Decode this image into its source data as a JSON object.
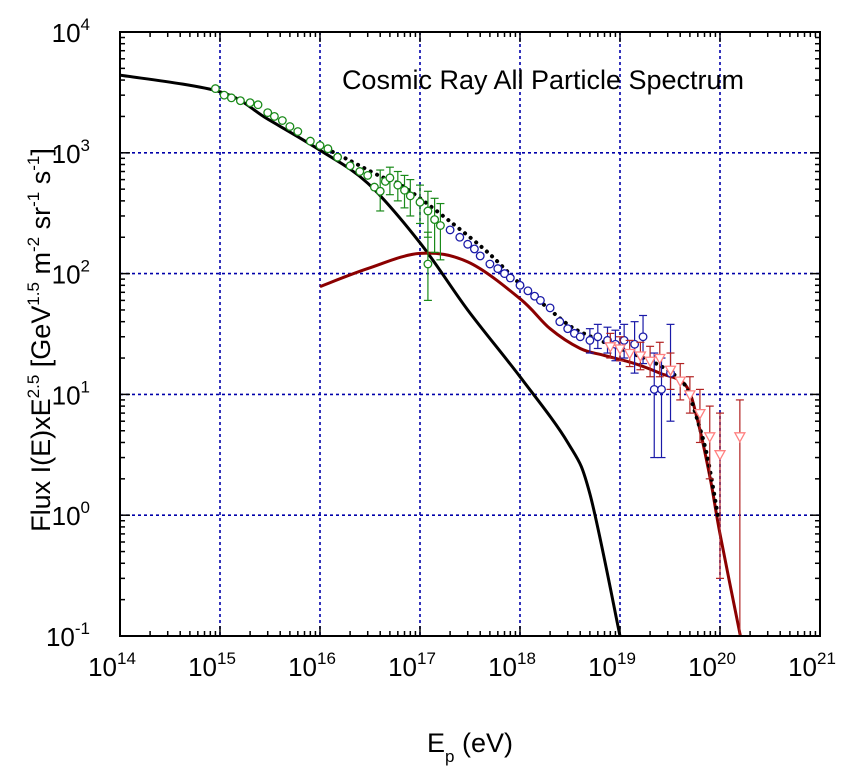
{
  "chart_data": {
    "type": "scatter",
    "title": "Cosmic Ray All Particle Spectrum",
    "xlabel": {
      "main": "E",
      "sub": "p",
      "rest": " (eV)"
    },
    "ylabel": {
      "p1": "Flux I(E)xE",
      "s1": "2.5",
      "p2": " [GeV",
      "s2": "1.5",
      "p3": " m",
      "s3": "-2",
      "p4": " sr",
      "s4": "-1",
      "p5": "  s",
      "s5": "-1",
      "p6": "]"
    },
    "x_scale": "log",
    "y_scale": "log",
    "xlim": [
      100000000000000.0,
      1e+21
    ],
    "ylim": [
      0.1,
      10000
    ],
    "grid": true,
    "x_ticks": [
      {
        "base": "10",
        "exp": "14"
      },
      {
        "base": "10",
        "exp": "15"
      },
      {
        "base": "10",
        "exp": "16"
      },
      {
        "base": "10",
        "exp": "17"
      },
      {
        "base": "10",
        "exp": "18"
      },
      {
        "base": "10",
        "exp": "19"
      },
      {
        "base": "10",
        "exp": "20"
      },
      {
        "base": "10",
        "exp": "21"
      }
    ],
    "y_ticks": [
      {
        "base": "10",
        "exp": "-1"
      },
      {
        "base": "10",
        "exp": "0"
      },
      {
        "base": "10",
        "exp": "1"
      },
      {
        "base": "10",
        "exp": "2"
      },
      {
        "base": "10",
        "exp": "3"
      },
      {
        "base": "10",
        "exp": "4"
      }
    ],
    "colors": {
      "grid": "#0000aa",
      "black_model": "#000000",
      "red_model": "#8b0000",
      "green_data": "#1a8a1a",
      "blue_data": "#1a1aa8",
      "pink_data": "#ff8080",
      "pink_errors": "#b22222"
    },
    "series": [
      {
        "kind": "line",
        "color": "#000000",
        "width": 3,
        "points": [
          [
            100000000000000.0,
            4400
          ],
          [
            1000000000000000.0,
            3200
          ],
          [
            3000000000000000.0,
            1900
          ],
          [
            1e+16,
            1050
          ],
          [
            3e+16,
            560
          ],
          [
            1e+17,
            180
          ],
          [
            3e+17,
            50
          ],
          [
            1e+18,
            14
          ],
          [
            3e+18,
            4
          ],
          [
            5e+18,
            1.5
          ],
          [
            1e+19,
            0.1
          ]
        ]
      },
      {
        "kind": "line",
        "color": "#8b0000",
        "width": 3,
        "points": [
          [
            1e+16,
            78
          ],
          [
            3e+16,
            110
          ],
          [
            1e+17,
            147
          ],
          [
            3e+17,
            125
          ],
          [
            1e+18,
            62
          ],
          [
            2e+18,
            35
          ],
          [
            4e+18,
            24
          ],
          [
            7e+18,
            21
          ],
          [
            1.4e+19,
            18
          ],
          [
            2.5e+19,
            15
          ],
          [
            4.5e+19,
            12
          ],
          [
            6e+19,
            6
          ],
          [
            8e+19,
            2
          ],
          [
            1e+20,
            0.7
          ],
          [
            1.6e+20,
            0.1
          ]
        ]
      },
      {
        "kind": "dotted",
        "color": "#000000",
        "width": 3,
        "points": [
          [
            1e+16,
            1150
          ],
          [
            2e+16,
            860
          ],
          [
            4e+16,
            640
          ],
          [
            6e+16,
            560
          ],
          [
            1e+17,
            420
          ],
          [
            2e+17,
            270
          ],
          [
            4e+17,
            170
          ],
          [
            6e+17,
            125
          ],
          [
            1e+18,
            82
          ],
          [
            2e+18,
            50
          ],
          [
            3e+18,
            38
          ],
          [
            4e+18,
            33
          ],
          [
            7e+18,
            27
          ],
          [
            1.3e+19,
            22
          ],
          [
            2.3e+19,
            18
          ],
          [
            3.7e+19,
            14
          ],
          [
            4.7e+19,
            11
          ],
          [
            6e+19,
            6
          ],
          [
            7.5e+19,
            3
          ],
          [
            9.5e+19,
            1
          ]
        ]
      },
      {
        "kind": "points",
        "marker": "circle",
        "color": "#1a8a1a",
        "points": [
          {
            "x": 900000000000000.0,
            "y": 3400
          },
          {
            "x": 1100000000000000.0,
            "y": 3000
          },
          {
            "x": 1300000000000000.0,
            "y": 2850
          },
          {
            "x": 1600000000000000.0,
            "y": 2700
          },
          {
            "x": 2000000000000000.0,
            "y": 2600
          },
          {
            "x": 2400000000000000.0,
            "y": 2500
          },
          {
            "x": 3000000000000000.0,
            "y": 2150
          },
          {
            "x": 3500000000000000.0,
            "y": 2000
          },
          {
            "x": 4200000000000000.0,
            "y": 1850
          },
          {
            "x": 5000000000000000.0,
            "y": 1650
          },
          {
            "x": 6000000000000000.0,
            "y": 1500
          },
          {
            "x": 8000000000000000.0,
            "y": 1250
          },
          {
            "x": 1e+16,
            "y": 1150
          },
          {
            "x": 1.2e+16,
            "y": 1080
          },
          {
            "x": 1.5e+16,
            "y": 920
          },
          {
            "x": 2e+16,
            "y": 780
          },
          {
            "x": 2.5e+16,
            "y": 700
          },
          {
            "x": 3e+16,
            "y": 650
          },
          {
            "x": 3.5e+16,
            "y": 520
          },
          {
            "x": 4e+16,
            "y": 480,
            "lo": 330,
            "hi": 720
          },
          {
            "x": 4.5e+16,
            "y": 580
          },
          {
            "x": 5e+16,
            "y": 620,
            "lo": 450,
            "hi": 760
          },
          {
            "x": 6e+16,
            "y": 540,
            "lo": 400,
            "hi": 700
          },
          {
            "x": 7e+16,
            "y": 490,
            "lo": 350,
            "hi": 650
          },
          {
            "x": 8e+16,
            "y": 440,
            "lo": 300,
            "hi": 600
          },
          {
            "x": 1e+17,
            "y": 390,
            "lo": 260,
            "hi": 540
          },
          {
            "x": 1.2e+17,
            "y": 330,
            "lo": 200,
            "hi": 480
          },
          {
            "x": 1.4e+17,
            "y": 280,
            "lo": 150,
            "hi": 420
          },
          {
            "x": 1.6e+17,
            "y": 250,
            "lo": 130,
            "hi": 380
          },
          {
            "x": 1.2e+17,
            "y": 120,
            "lo": 60,
            "hi": 220
          }
        ]
      },
      {
        "kind": "points",
        "marker": "circle",
        "color": "#1a1aa8",
        "points": [
          {
            "x": 2e+17,
            "y": 230
          },
          {
            "x": 2.5e+17,
            "y": 200
          },
          {
            "x": 3e+17,
            "y": 175
          },
          {
            "x": 3.5e+17,
            "y": 160
          },
          {
            "x": 4e+17,
            "y": 140
          },
          {
            "x": 5e+17,
            "y": 120
          },
          {
            "x": 6e+17,
            "y": 110
          },
          {
            "x": 7e+17,
            "y": 100
          },
          {
            "x": 8e+17,
            "y": 92
          },
          {
            "x": 1e+18,
            "y": 80
          },
          {
            "x": 1.2e+18,
            "y": 72
          },
          {
            "x": 1.4e+18,
            "y": 65
          },
          {
            "x": 1.6e+18,
            "y": 60
          },
          {
            "x": 2e+18,
            "y": 52
          },
          {
            "x": 2.5e+18,
            "y": 40
          },
          {
            "x": 3e+18,
            "y": 35
          },
          {
            "x": 3.5e+18,
            "y": 32
          },
          {
            "x": 4e+18,
            "y": 30
          },
          {
            "x": 5e+18,
            "y": 28,
            "lo": 22,
            "hi": 35
          },
          {
            "x": 6e+18,
            "y": 30,
            "lo": 24,
            "hi": 38
          },
          {
            "x": 7.5e+18,
            "y": 28,
            "lo": 22,
            "hi": 36
          },
          {
            "x": 9e+18,
            "y": 26,
            "lo": 19,
            "hi": 34
          },
          {
            "x": 1.1e+19,
            "y": 28,
            "lo": 20,
            "hi": 38
          },
          {
            "x": 1.4e+19,
            "y": 26,
            "lo": 15,
            "hi": 40
          },
          {
            "x": 1.7e+19,
            "y": 30,
            "lo": 18,
            "hi": 45
          },
          {
            "x": 2.2e+19,
            "y": 11,
            "lo": 3,
            "hi": 22
          },
          {
            "x": 2.6e+19,
            "y": 11,
            "lo": 3,
            "hi": 20
          },
          {
            "x": 3.2e+19,
            "y": 15,
            "lo": 6,
            "hi": 38
          }
        ]
      },
      {
        "kind": "points",
        "marker": "triangle-down",
        "color": "#ff8080",
        "err_color": "#b22222",
        "points": [
          {
            "x": 8e+18,
            "y": 25,
            "lo": 20,
            "hi": 32
          },
          {
            "x": 1e+19,
            "y": 24,
            "lo": 19,
            "hi": 30
          },
          {
            "x": 1.25e+19,
            "y": 22,
            "lo": 17,
            "hi": 28
          },
          {
            "x": 1.6e+19,
            "y": 21,
            "lo": 16,
            "hi": 27
          },
          {
            "x": 2e+19,
            "y": 19,
            "lo": 14,
            "hi": 25
          },
          {
            "x": 2.5e+19,
            "y": 20,
            "lo": 14,
            "hi": 27
          },
          {
            "x": 3.2e+19,
            "y": 16,
            "lo": 11,
            "hi": 22
          },
          {
            "x": 4e+19,
            "y": 13,
            "lo": 9,
            "hi": 18
          },
          {
            "x": 5e+19,
            "y": 10,
            "lo": 7,
            "hi": 14
          },
          {
            "x": 6.3e+19,
            "y": 7,
            "lo": 4,
            "hi": 11
          },
          {
            "x": 7.9e+19,
            "y": 4.5,
            "lo": 2,
            "hi": 8
          },
          {
            "x": 1e+20,
            "y": 3.2,
            "lo": 0.3,
            "hi": 7
          },
          {
            "x": 1.58e+20,
            "y": 4.5,
            "lo": 0.1,
            "hi": 9
          }
        ]
      }
    ]
  }
}
